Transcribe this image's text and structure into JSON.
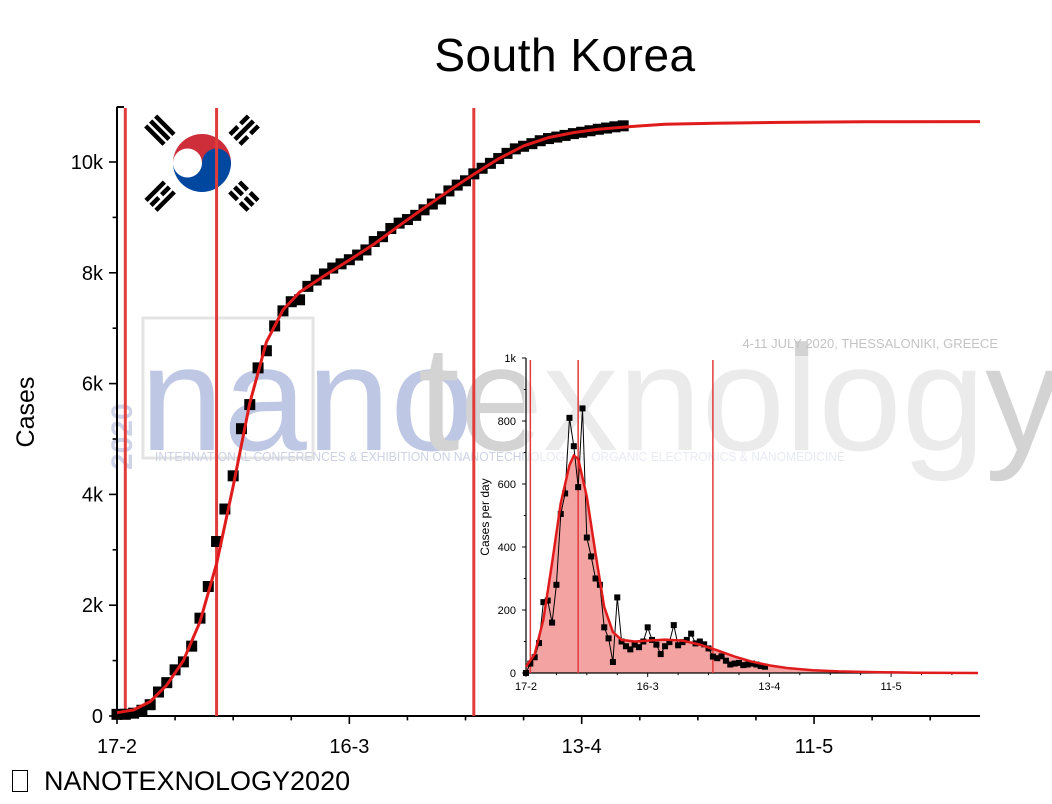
{
  "title": "South Korea",
  "footer": "NANOTEXNOLOGY2020",
  "footer_symbol": "copyright-placeholder-box",
  "colors": {
    "data": "#000000",
    "fit": "#e01b1b",
    "marker_line": "#e03c3c",
    "inset_fill": "#f4a3a3",
    "flag_red": "#cd2e3a",
    "flag_blue": "#0047a0"
  },
  "watermark": {
    "year": "2020",
    "word_nano": "nano",
    "word_rest": "texnology",
    "event": "4-11 JULY 2020, THESSALONIKI, GREECE",
    "tagline": "INTERNATIONAL CONFERENCES & EXHIBITION ON NANOTECHNOLOGIES, ORGANIC ELECTRONICS & NANOMEDICINE"
  },
  "chart_data": [
    {
      "type": "scatter",
      "name": "main",
      "ylabel": "Cases",
      "xlabel": "",
      "x_ticks": [
        "17-2",
        "16-3",
        "13-4",
        "11-5"
      ],
      "x_tick_days": [
        0,
        28,
        56,
        84
      ],
      "xlim_days": [
        0,
        104
      ],
      "ylim": [
        0,
        11000
      ],
      "y_ticks": [
        0,
        2000,
        4000,
        6000,
        8000,
        10000
      ],
      "y_tick_labels": [
        "0",
        "2k",
        "4k",
        "6k",
        "8k",
        "10k"
      ],
      "vertical_markers_days": [
        1,
        12,
        43
      ],
      "cumulative_points": [
        {
          "d": 0,
          "y": 30
        },
        {
          "d": 1,
          "y": 31
        },
        {
          "d": 2,
          "y": 51
        },
        {
          "d": 3,
          "y": 104
        },
        {
          "d": 4,
          "y": 204
        },
        {
          "d": 5,
          "y": 433
        },
        {
          "d": 6,
          "y": 602
        },
        {
          "d": 7,
          "y": 833
        },
        {
          "d": 8,
          "y": 977
        },
        {
          "d": 9,
          "y": 1261
        },
        {
          "d": 10,
          "y": 1766
        },
        {
          "d": 11,
          "y": 2337
        },
        {
          "d": 12,
          "y": 3150
        },
        {
          "d": 13,
          "y": 3736
        },
        {
          "d": 14,
          "y": 4335
        },
        {
          "d": 15,
          "y": 5186
        },
        {
          "d": 16,
          "y": 5621
        },
        {
          "d": 17,
          "y": 6284
        },
        {
          "d": 18,
          "y": 6593
        },
        {
          "d": 19,
          "y": 7041
        },
        {
          "d": 20,
          "y": 7313
        },
        {
          "d": 21,
          "y": 7478
        },
        {
          "d": 22,
          "y": 7513
        },
        {
          "d": 23,
          "y": 7755
        },
        {
          "d": 24,
          "y": 7869
        },
        {
          "d": 25,
          "y": 7979
        },
        {
          "d": 26,
          "y": 8086
        },
        {
          "d": 27,
          "y": 8162
        },
        {
          "d": 28,
          "y": 8236
        },
        {
          "d": 29,
          "y": 8320
        },
        {
          "d": 30,
          "y": 8413
        },
        {
          "d": 31,
          "y": 8565
        },
        {
          "d": 32,
          "y": 8652
        },
        {
          "d": 33,
          "y": 8799
        },
        {
          "d": 34,
          "y": 8897
        },
        {
          "d": 35,
          "y": 8961
        },
        {
          "d": 36,
          "y": 9037
        },
        {
          "d": 37,
          "y": 9137
        },
        {
          "d": 38,
          "y": 9241
        },
        {
          "d": 39,
          "y": 9332
        },
        {
          "d": 40,
          "y": 9478
        },
        {
          "d": 41,
          "y": 9583
        },
        {
          "d": 42,
          "y": 9661
        },
        {
          "d": 43,
          "y": 9786
        },
        {
          "d": 44,
          "y": 9887
        },
        {
          "d": 45,
          "y": 9976
        },
        {
          "d": 46,
          "y": 10062
        },
        {
          "d": 47,
          "y": 10156
        },
        {
          "d": 48,
          "y": 10237
        },
        {
          "d": 49,
          "y": 10284
        },
        {
          "d": 50,
          "y": 10331
        },
        {
          "d": 51,
          "y": 10384
        },
        {
          "d": 52,
          "y": 10423
        },
        {
          "d": 53,
          "y": 10450
        },
        {
          "d": 54,
          "y": 10480
        },
        {
          "d": 55,
          "y": 10512
        },
        {
          "d": 56,
          "y": 10537
        },
        {
          "d": 57,
          "y": 10564
        },
        {
          "d": 58,
          "y": 10591
        },
        {
          "d": 59,
          "y": 10613
        },
        {
          "d": 60,
          "y": 10635
        },
        {
          "d": 61,
          "y": 10653
        }
      ],
      "fit_curve": [
        {
          "d": 0,
          "y": 60
        },
        {
          "d": 2,
          "y": 110
        },
        {
          "d": 4,
          "y": 260
        },
        {
          "d": 6,
          "y": 560
        },
        {
          "d": 8,
          "y": 1000
        },
        {
          "d": 10,
          "y": 1700
        },
        {
          "d": 12,
          "y": 2750
        },
        {
          "d": 14,
          "y": 4150
        },
        {
          "d": 16,
          "y": 5650
        },
        {
          "d": 18,
          "y": 6750
        },
        {
          "d": 20,
          "y": 7330
        },
        {
          "d": 22,
          "y": 7650
        },
        {
          "d": 25,
          "y": 7950
        },
        {
          "d": 28,
          "y": 8230
        },
        {
          "d": 31,
          "y": 8520
        },
        {
          "d": 34,
          "y": 8850
        },
        {
          "d": 37,
          "y": 9170
        },
        {
          "d": 40,
          "y": 9480
        },
        {
          "d": 43,
          "y": 9780
        },
        {
          "d": 46,
          "y": 10060
        },
        {
          "d": 49,
          "y": 10290
        },
        {
          "d": 52,
          "y": 10440
        },
        {
          "d": 55,
          "y": 10530
        },
        {
          "d": 58,
          "y": 10590
        },
        {
          "d": 62,
          "y": 10640
        },
        {
          "d": 66,
          "y": 10680
        },
        {
          "d": 72,
          "y": 10700
        },
        {
          "d": 80,
          "y": 10715
        },
        {
          "d": 90,
          "y": 10725
        },
        {
          "d": 104,
          "y": 10730
        }
      ]
    },
    {
      "type": "area",
      "name": "inset",
      "ylabel": "Cases per day",
      "xlabel": "",
      "x_ticks": [
        "17-2",
        "16-3",
        "13-4",
        "11-5"
      ],
      "x_tick_days": [
        0,
        28,
        56,
        84
      ],
      "xlim_days": [
        0,
        104
      ],
      "ylim": [
        0,
        1000
      ],
      "y_ticks": [
        0,
        200,
        400,
        600,
        800,
        1000
      ],
      "y_tick_labels": [
        "0",
        "200",
        "400",
        "600",
        "800",
        "1k"
      ],
      "vertical_markers_days": [
        1,
        12,
        43
      ],
      "daily_points": [
        {
          "d": 0,
          "y": 0
        },
        {
          "d": 1,
          "y": 30
        },
        {
          "d": 2,
          "y": 50
        },
        {
          "d": 3,
          "y": 95
        },
        {
          "d": 4,
          "y": 225
        },
        {
          "d": 5,
          "y": 230
        },
        {
          "d": 6,
          "y": 160
        },
        {
          "d": 7,
          "y": 280
        },
        {
          "d": 8,
          "y": 505
        },
        {
          "d": 9,
          "y": 570
        },
        {
          "d": 10,
          "y": 810
        },
        {
          "d": 11,
          "y": 720
        },
        {
          "d": 12,
          "y": 590
        },
        {
          "d": 13,
          "y": 840
        },
        {
          "d": 14,
          "y": 430
        },
        {
          "d": 15,
          "y": 370
        },
        {
          "d": 16,
          "y": 300
        },
        {
          "d": 17,
          "y": 280
        },
        {
          "d": 18,
          "y": 145
        },
        {
          "d": 19,
          "y": 110
        },
        {
          "d": 20,
          "y": 35
        },
        {
          "d": 21,
          "y": 240
        },
        {
          "d": 22,
          "y": 100
        },
        {
          "d": 23,
          "y": 85
        },
        {
          "d": 24,
          "y": 75
        },
        {
          "d": 25,
          "y": 90
        },
        {
          "d": 26,
          "y": 82
        },
        {
          "d": 27,
          "y": 100
        },
        {
          "d": 28,
          "y": 145
        },
        {
          "d": 29,
          "y": 105
        },
        {
          "d": 30,
          "y": 90
        },
        {
          "d": 31,
          "y": 60
        },
        {
          "d": 32,
          "y": 85
        },
        {
          "d": 33,
          "y": 98
        },
        {
          "d": 34,
          "y": 152
        },
        {
          "d": 35,
          "y": 88
        },
        {
          "d": 36,
          "y": 98
        },
        {
          "d": 37,
          "y": 105
        },
        {
          "d": 38,
          "y": 125
        },
        {
          "d": 39,
          "y": 94
        },
        {
          "d": 40,
          "y": 100
        },
        {
          "d": 41,
          "y": 91
        },
        {
          "d": 42,
          "y": 78
        },
        {
          "d": 43,
          "y": 52
        },
        {
          "d": 44,
          "y": 47
        },
        {
          "d": 45,
          "y": 53
        },
        {
          "d": 46,
          "y": 39
        },
        {
          "d": 47,
          "y": 27
        },
        {
          "d": 48,
          "y": 30
        },
        {
          "d": 49,
          "y": 32
        },
        {
          "d": 50,
          "y": 25
        },
        {
          "d": 51,
          "y": 27
        },
        {
          "d": 52,
          "y": 30
        },
        {
          "d": 53,
          "y": 27
        },
        {
          "d": 54,
          "y": 22
        },
        {
          "d": 55,
          "y": 20
        }
      ],
      "fit_curve": [
        {
          "d": 0,
          "y": 20
        },
        {
          "d": 2,
          "y": 60
        },
        {
          "d": 4,
          "y": 170
        },
        {
          "d": 6,
          "y": 350
        },
        {
          "d": 8,
          "y": 540
        },
        {
          "d": 10,
          "y": 660
        },
        {
          "d": 11,
          "y": 690
        },
        {
          "d": 12,
          "y": 680
        },
        {
          "d": 14,
          "y": 560
        },
        {
          "d": 16,
          "y": 380
        },
        {
          "d": 18,
          "y": 210
        },
        {
          "d": 20,
          "y": 130
        },
        {
          "d": 22,
          "y": 105
        },
        {
          "d": 25,
          "y": 100
        },
        {
          "d": 28,
          "y": 103
        },
        {
          "d": 32,
          "y": 106
        },
        {
          "d": 36,
          "y": 103
        },
        {
          "d": 40,
          "y": 90
        },
        {
          "d": 44,
          "y": 72
        },
        {
          "d": 48,
          "y": 52
        },
        {
          "d": 52,
          "y": 36
        },
        {
          "d": 56,
          "y": 24
        },
        {
          "d": 60,
          "y": 16
        },
        {
          "d": 66,
          "y": 9
        },
        {
          "d": 72,
          "y": 5
        },
        {
          "d": 80,
          "y": 3
        },
        {
          "d": 90,
          "y": 1
        },
        {
          "d": 104,
          "y": 0
        }
      ]
    }
  ]
}
